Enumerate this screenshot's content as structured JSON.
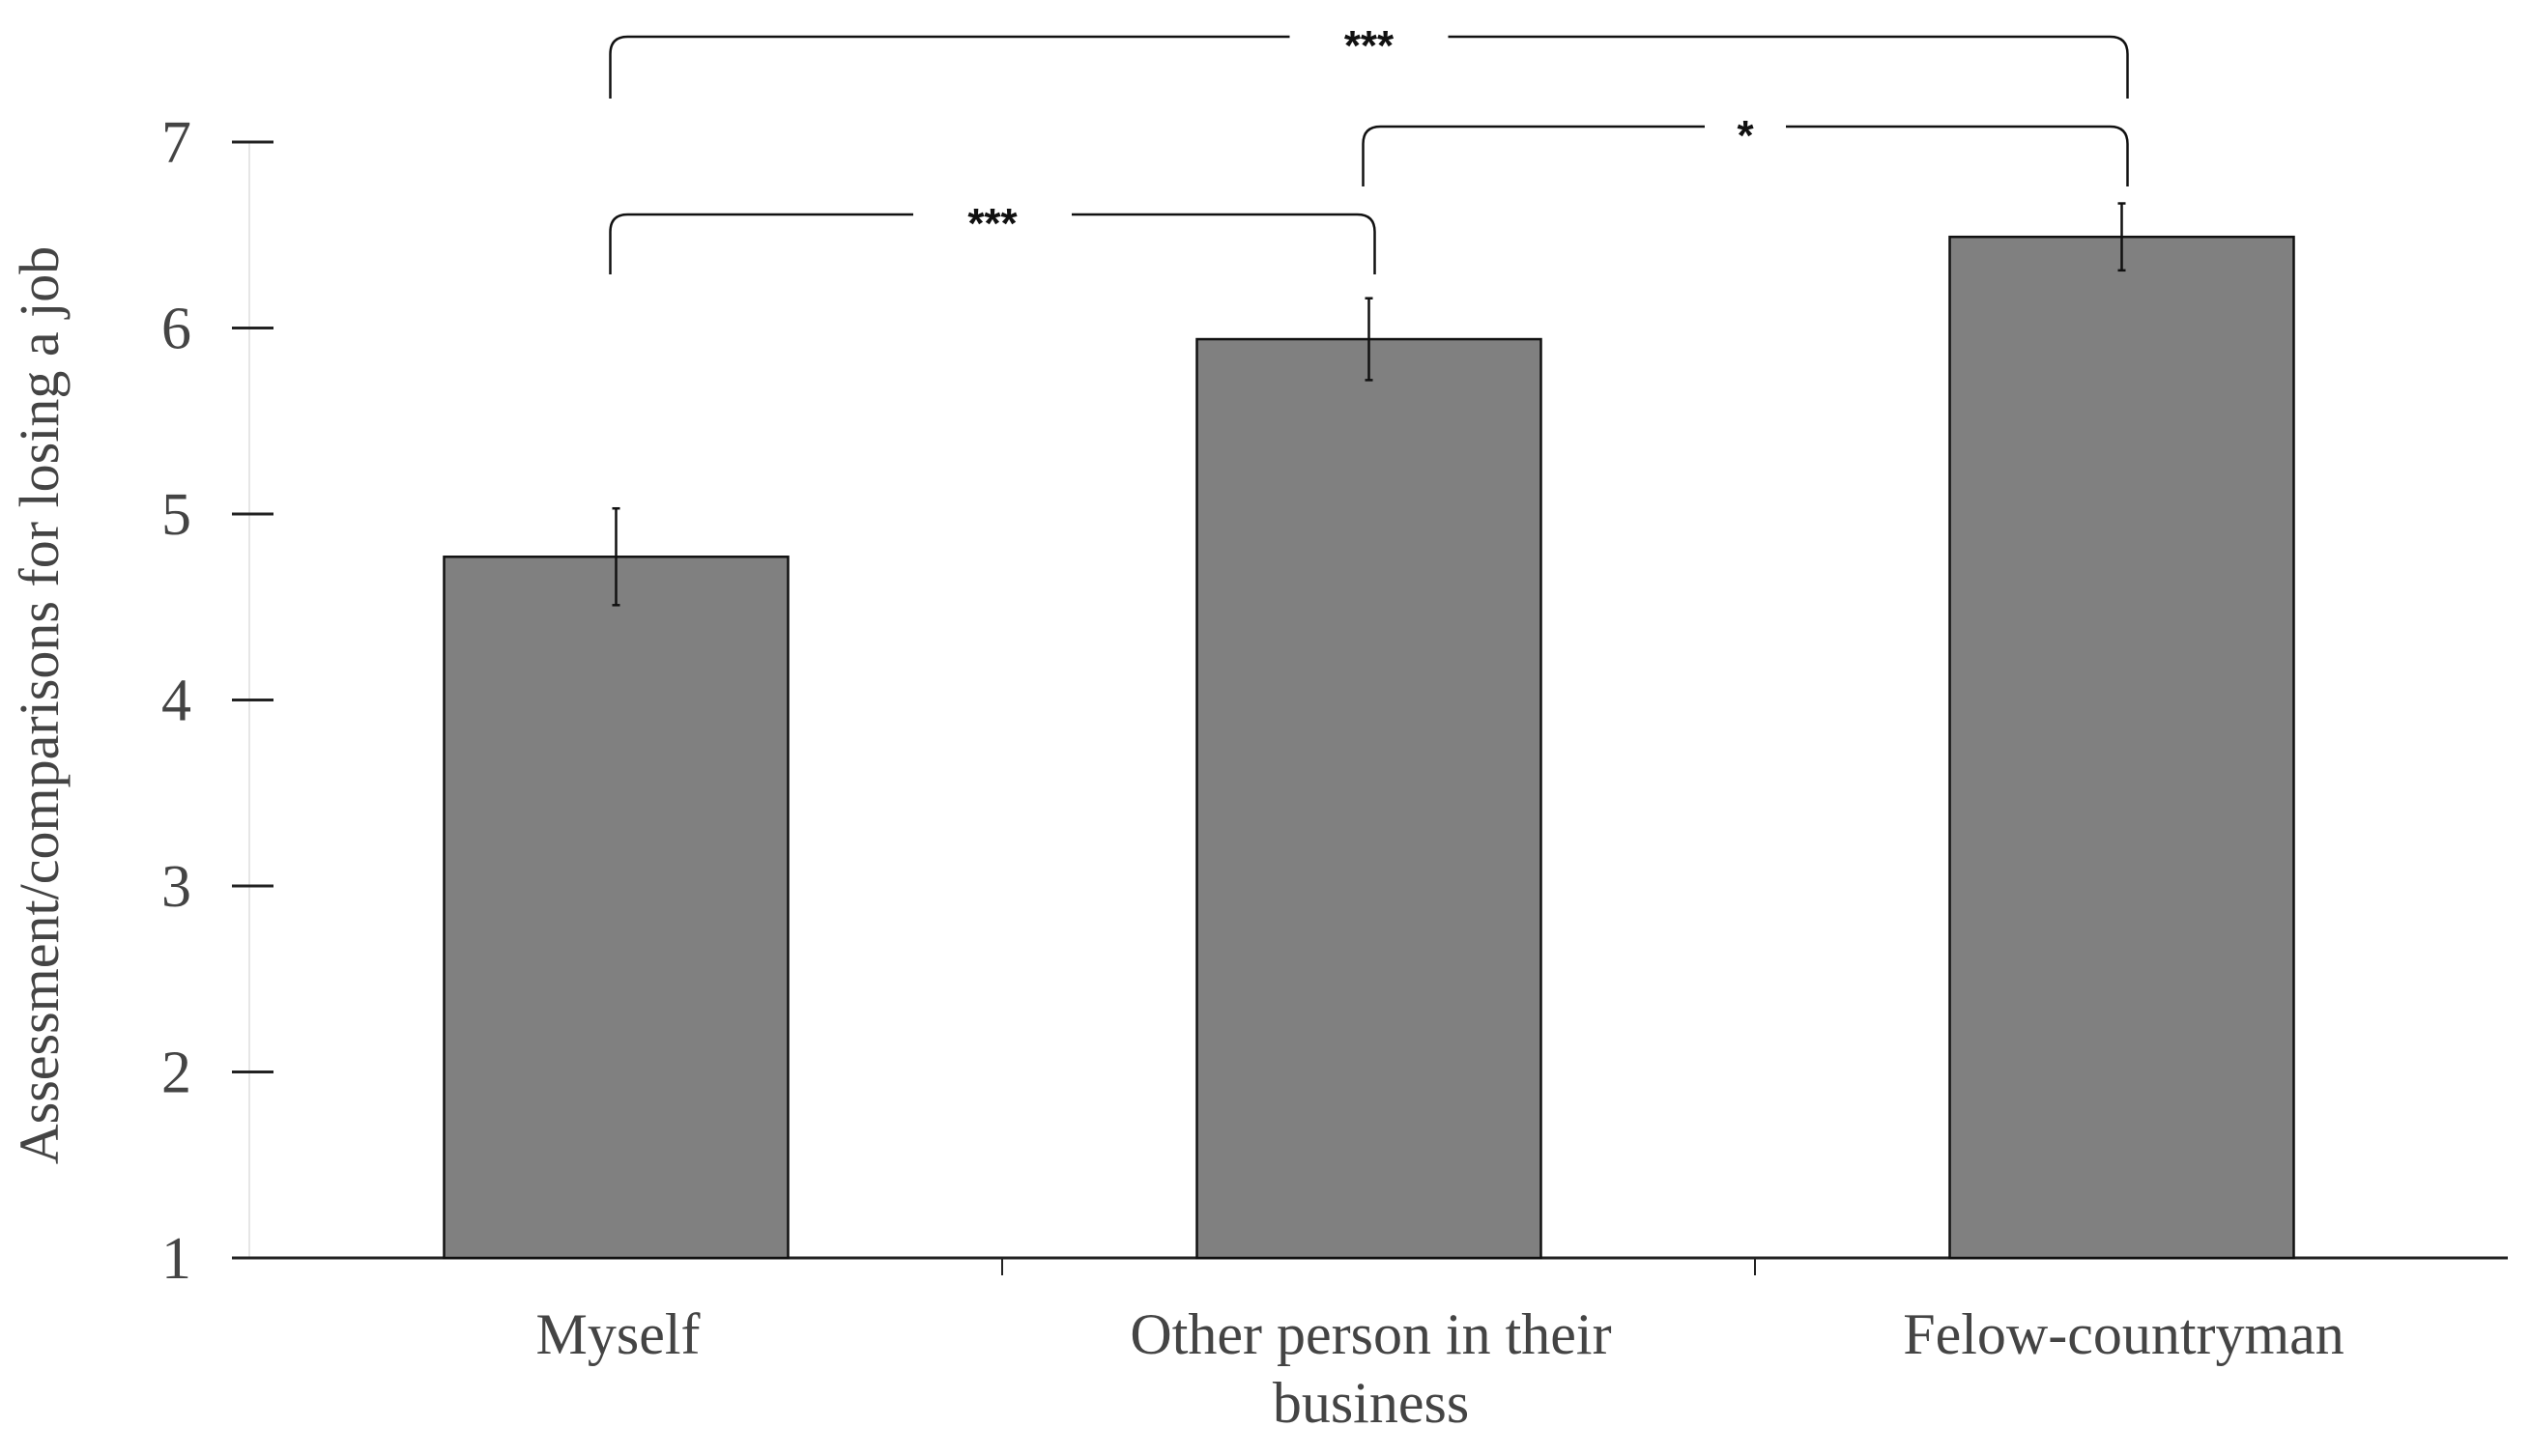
{
  "chart_data": {
    "type": "bar",
    "title": "",
    "xlabel": "",
    "ylabel": "Assessment/comparisons for losing a job",
    "categories": [
      "Myself",
      "Other person in their business",
      "Felow-countryman"
    ],
    "category_lines": [
      [
        "Myself"
      ],
      [
        "Other person in their",
        "business"
      ],
      [
        "Felow-countryman"
      ]
    ],
    "values": [
      4.77,
      5.94,
      6.49
    ],
    "error_bars": [
      0.26,
      0.22,
      0.18
    ],
    "ylim": [
      1,
      7
    ],
    "yticks": [
      "1",
      "2",
      "3",
      "4",
      "5",
      "6",
      "7"
    ],
    "grid": false,
    "bar_color": "#808080",
    "significance": [
      {
        "from": 0,
        "to": 1,
        "label": "***"
      },
      {
        "from": 1,
        "to": 2,
        "label": "*"
      },
      {
        "from": 0,
        "to": 2,
        "label": "***"
      }
    ]
  }
}
